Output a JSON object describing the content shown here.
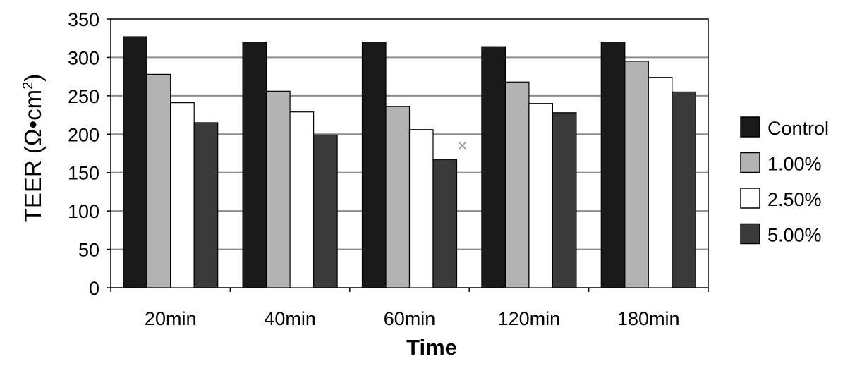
{
  "chart_data": {
    "type": "bar",
    "title": "",
    "xlabel": "Time",
    "ylabel": "TEER (Ω•cm²)",
    "ylabel_main": "TEER (Ω•cm",
    "ylabel_sup": "2",
    "ylabel_close": ")",
    "ylim": [
      0,
      350
    ],
    "yticks": [
      0,
      50,
      100,
      150,
      200,
      250,
      300,
      350
    ],
    "grid": true,
    "legend_position": "right",
    "categories": [
      "20min",
      "40min",
      "60min",
      "120min",
      "180min"
    ],
    "series": [
      {
        "name": "Control",
        "color": "#1a1a1a",
        "values": [
          327,
          320,
          320,
          314,
          320
        ]
      },
      {
        "name": "1.00%",
        "color": "#b3b3b3",
        "values": [
          278,
          256,
          236,
          268,
          295
        ]
      },
      {
        "name": "2.50%",
        "color": "#ffffff",
        "values": [
          241,
          229,
          206,
          240,
          274
        ]
      },
      {
        "name": "5.00%",
        "color": "#3a3a3a",
        "values": [
          215,
          199,
          167,
          228,
          255
        ]
      }
    ],
    "annotations": [
      {
        "symbol": "×",
        "category": "60min",
        "value": 185,
        "color": "#999999"
      }
    ]
  }
}
